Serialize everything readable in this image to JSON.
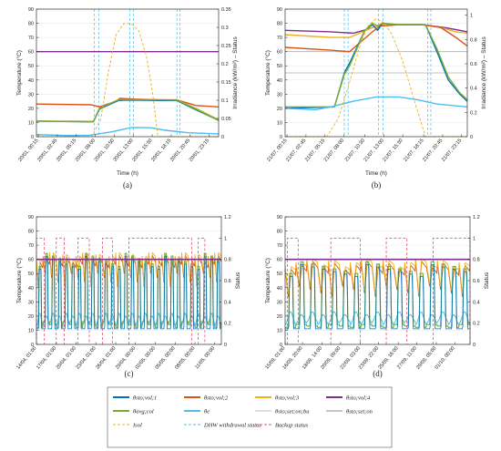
{
  "legend": [
    {
      "label": "θsto;vol;1",
      "color": "#0072BD",
      "style": "solid",
      "width": 2
    },
    {
      "label": "θsto;vol;2",
      "color": "#D95319",
      "style": "solid",
      "width": 2
    },
    {
      "label": "θsto;vol;3",
      "color": "#EDB120",
      "style": "solid",
      "width": 2
    },
    {
      "label": "θsto;vol;4",
      "color": "#7E2F8E",
      "style": "solid",
      "width": 2
    },
    {
      "label": "θavg;col",
      "color": "#77AC30",
      "style": "solid",
      "width": 2
    },
    {
      "label": "θe",
      "color": "#4DBEEE",
      "style": "solid",
      "width": 2
    },
    {
      "label": "θsto;set;on;bu",
      "color": "#bfbfbf",
      "style": "solid",
      "width": 1
    },
    {
      "label": "θsto;set;on",
      "color": "#8c8c8c",
      "style": "solid",
      "width": 1
    },
    {
      "label": "Isol",
      "color": "#EDB120",
      "style": "dash",
      "width": 1
    },
    {
      "label": "DHW withdrawal status",
      "color": "#4DBEEE",
      "style": "dash",
      "width": 1
    },
    {
      "label": "Backup status",
      "color": "#e05570",
      "style": "dash",
      "width": 1
    }
  ],
  "chart_data": [
    {
      "panel": "(a)",
      "type": "line",
      "xlabel": "Time (h)",
      "ylabel": "Temperature (°C)",
      "y2label": "Irradiance (kW/m²) – Status",
      "ylim": [
        0,
        90
      ],
      "yticks": [
        0,
        10,
        20,
        30,
        40,
        50,
        60,
        70,
        80,
        90
      ],
      "y2lim": [
        0,
        0.35
      ],
      "y2ticks": [
        0,
        0.05,
        0.1,
        0.15,
        0.2,
        0.25,
        0.3,
        0.35
      ],
      "xlim": [
        0,
        24
      ],
      "xticks": [
        0.25,
        2.75,
        5.25,
        7.75,
        10.25,
        12.75,
        15.25,
        17.75,
        20.25,
        22.75
      ],
      "xticklabels": [
        "20/01, 00:15",
        "20/01, 02:45",
        "20/01, 05:15",
        "20/01, 08:00",
        "20/01, 10:50",
        "20/01, 13:00",
        "20/01, 15:30",
        "20/01, 18:15",
        "20/01, 20:45",
        "20/01, 23:15"
      ],
      "series": [
        {
          "name": "θsto;vol;4",
          "x": [
            0,
            24
          ],
          "y": [
            60,
            60
          ]
        },
        {
          "name": "θsto;vol;2",
          "x": [
            0,
            7.2,
            8.3,
            10.5,
            11,
            13,
            16.5,
            18.5,
            21,
            24
          ],
          "y": [
            23,
            22.5,
            21,
            25,
            27,
            26.5,
            26,
            26,
            22,
            21
          ]
        },
        {
          "name": "θsto;vol;3",
          "x": [
            0,
            7.5,
            8.3,
            10.8,
            12,
            16.5,
            18.5,
            21,
            24
          ],
          "y": [
            11,
            10.8,
            20,
            26,
            26,
            26,
            26,
            20,
            12
          ]
        },
        {
          "name": "θsto;vol;1",
          "x": [
            0,
            7.5,
            8.3,
            10.8,
            12,
            16.5,
            18.5,
            21,
            24
          ],
          "y": [
            11,
            10.5,
            19.5,
            25.5,
            25.8,
            25.5,
            25.5,
            19,
            11.5
          ]
        },
        {
          "name": "θavg;col",
          "x": [
            0,
            7.5,
            8.3,
            10.8,
            12,
            16.5,
            18.5,
            21,
            24
          ],
          "y": [
            11,
            10.5,
            20,
            26,
            26,
            26,
            25.8,
            19.5,
            11.5
          ]
        },
        {
          "name": "θe",
          "x": [
            0,
            4,
            7,
            10,
            12.5,
            15,
            17,
            20,
            24
          ],
          "y": [
            1.5,
            0.8,
            1,
            3.5,
            6.5,
            6.3,
            4.5,
            2.8,
            2
          ]
        },
        {
          "name": "Isol",
          "axis": "y2",
          "x": [
            0,
            7.3,
            8.5,
            9.5,
            10.5,
            11.5,
            12.5,
            13.5,
            14.5,
            15.3,
            16,
            24
          ],
          "y": [
            0,
            0,
            0.05,
            0.18,
            0.28,
            0.31,
            0.31,
            0.29,
            0.22,
            0.12,
            0,
            0
          ]
        }
      ],
      "dhw_lines_x": [
        7.6,
        8.2,
        12.3,
        12.8,
        18.5,
        18.9
      ]
    },
    {
      "panel": "(b)",
      "type": "line",
      "xlabel": "Time (h)",
      "ylabel": "Temperature (°C)",
      "y2label": "Irradiance (kW/m²) – Status",
      "ylim": [
        0,
        90
      ],
      "yticks": [
        0,
        10,
        20,
        30,
        40,
        50,
        60,
        70,
        80,
        90
      ],
      "y2lim": [
        0,
        1.05
      ],
      "y2ticks": [
        0,
        0.2,
        0.4,
        0.6,
        0.8,
        1
      ],
      "xlim": [
        0,
        24
      ],
      "xticks": [
        0.25,
        2.75,
        5.25,
        7.75,
        10.5,
        13,
        15.5,
        18.25,
        20.75,
        23.25
      ],
      "xticklabels": [
        "21/07, 00:15",
        "21/07, 02:45",
        "21/07, 05:15",
        "21/07, 08:00",
        "21/07, 10:30",
        "21/07, 13:00",
        "21/07, 15:30",
        "21/07, 18:15",
        "21/07, 20:45",
        "21/07, 23:15"
      ],
      "series": [
        {
          "name": "θsto;vol;4",
          "x": [
            0,
            6,
            9,
            11,
            12.5,
            15,
            18,
            21,
            24
          ],
          "y": [
            75,
            74,
            73,
            76,
            79,
            79,
            79,
            77,
            74
          ]
        },
        {
          "name": "θsto;vol;3",
          "x": [
            0,
            6,
            8.5,
            11.5,
            12.5,
            15,
            18,
            20.5,
            22.5,
            24
          ],
          "y": [
            72,
            70,
            70,
            77,
            79,
            79,
            79,
            77,
            74,
            73
          ]
        },
        {
          "name": "θsto;vol;2",
          "x": [
            0,
            6,
            8.5,
            11.5,
            12.5,
            15,
            18,
            20.5,
            22.5,
            24
          ],
          "y": [
            63,
            61,
            60,
            74,
            78,
            79,
            79,
            77,
            70,
            64
          ]
        },
        {
          "name": "θsto;vol;1",
          "x": [
            0,
            6.5,
            7.8,
            8.5,
            10.5,
            11.5,
            12.2,
            12.8,
            15,
            18.5,
            20,
            21.5,
            23,
            24
          ],
          "y": [
            20,
            21,
            45,
            52,
            75,
            79,
            75,
            80,
            79,
            79,
            60,
            40,
            30,
            25
          ]
        },
        {
          "name": "θavg;col",
          "x": [
            0,
            6.5,
            7.8,
            8.5,
            10.5,
            11.5,
            12.2,
            12.8,
            15,
            18.5,
            20,
            21.5,
            23,
            24
          ],
          "y": [
            21,
            21,
            44,
            50,
            75,
            80,
            78,
            80,
            79,
            79,
            62,
            42,
            31,
            26
          ]
        },
        {
          "name": "θe",
          "x": [
            0,
            4,
            6,
            9,
            12,
            15,
            17.5,
            20,
            24
          ],
          "y": [
            20,
            19,
            21,
            25,
            28,
            28,
            26,
            23,
            21
          ]
        },
        {
          "name": "Isol",
          "axis": "y2",
          "x": [
            0,
            5.5,
            7,
            8.5,
            10,
            11,
            12,
            13,
            14,
            15.5,
            17,
            18.5,
            24
          ],
          "y": [
            0,
            0,
            0.15,
            0.45,
            0.78,
            0.92,
            0.97,
            0.94,
            0.85,
            0.62,
            0.3,
            0,
            0
          ]
        }
      ],
      "dhw_lines_x": [
        7.8,
        8.3,
        12.3,
        12.9,
        18.8,
        19.2
      ],
      "hlines": [
        60,
        45
      ]
    },
    {
      "panel": "(c)",
      "type": "line",
      "xlabel": "",
      "ylabel": "Temperature (°C)",
      "y2label": "Status",
      "ylim": [
        0,
        90
      ],
      "yticks": [
        0,
        10,
        20,
        30,
        40,
        50,
        60,
        70,
        80,
        90
      ],
      "y2lim": [
        0,
        1.2
      ],
      "y2ticks": [
        0,
        0.2,
        0.4,
        0.6,
        0.8,
        1,
        1.2
      ],
      "xlim": [
        0,
        28
      ],
      "xticks": [
        0,
        3,
        6,
        9,
        12,
        15,
        18,
        21,
        24,
        27
      ],
      "xticklabels": [
        "14/04, 01:00",
        "17/04, 01:00",
        "20/04, 01:00",
        "23/04, 01:00",
        "26/04, 01:00",
        "29/04, 00:00",
        "02/05, 00:00",
        "05/05, 00:00",
        "08/05, 00:00",
        "11/05, 00:00"
      ],
      "daily_cycle": {
        "days": 28,
        "sto_top": [
          60,
          66
        ],
        "sto_min": [
          42,
          55
        ],
        "col_low": [
          12,
          18
        ],
        "col_high": [
          55,
          66
        ],
        "ambient": [
          14,
          22
        ]
      },
      "backup_on": [
        [
          0,
          1.2
        ],
        [
          3,
          4.2
        ],
        [
          6.3,
          8
        ],
        [
          10,
          11.5
        ],
        [
          14,
          23.5
        ],
        [
          24.5,
          25.5
        ]
      ],
      "backup_level": 1.0
    },
    {
      "panel": "(d)",
      "type": "line",
      "xlabel": "",
      "ylabel": "Temperature (°C)",
      "y2label": "Status",
      "ylim": [
        0,
        90
      ],
      "yticks": [
        0,
        10,
        20,
        30,
        40,
        50,
        60,
        70,
        80,
        90
      ],
      "y2lim": [
        0,
        1.2
      ],
      "y2ticks": [
        0,
        0.2,
        0.4,
        0.6,
        0.8,
        1,
        1.2
      ],
      "xlim": [
        0,
        17
      ],
      "xticks": [
        0,
        1.6,
        3.4,
        5.1,
        6.9,
        8.6,
        10.4,
        12.1,
        13.9,
        15.6
      ],
      "xticklabels": [
        "15/09, 01:00",
        "16/09, 20:00",
        "18/09, 14:00",
        "20/09, 09:00",
        "22/09, 03:00",
        "23/09, 22:00",
        "25/09, 16:00",
        "27/09, 11:00",
        "29/09, 05:00",
        "01/10, 00:00"
      ],
      "daily_cycle": {
        "days": 17,
        "sto_top": [
          55,
          62
        ],
        "sto_min": [
          35,
          45
        ],
        "col_low": [
          12,
          15
        ],
        "col_high": [
          50,
          60
        ],
        "ambient": [
          15,
          23
        ]
      },
      "backup_on": [
        [
          0.2,
          1.2
        ],
        [
          4.2,
          6.9
        ],
        [
          9.3,
          11.2
        ],
        [
          13.6,
          17
        ]
      ],
      "backup_level": 1.0
    }
  ],
  "panel_labels": [
    "(a)",
    "(b)",
    "(c)",
    "(d)"
  ]
}
